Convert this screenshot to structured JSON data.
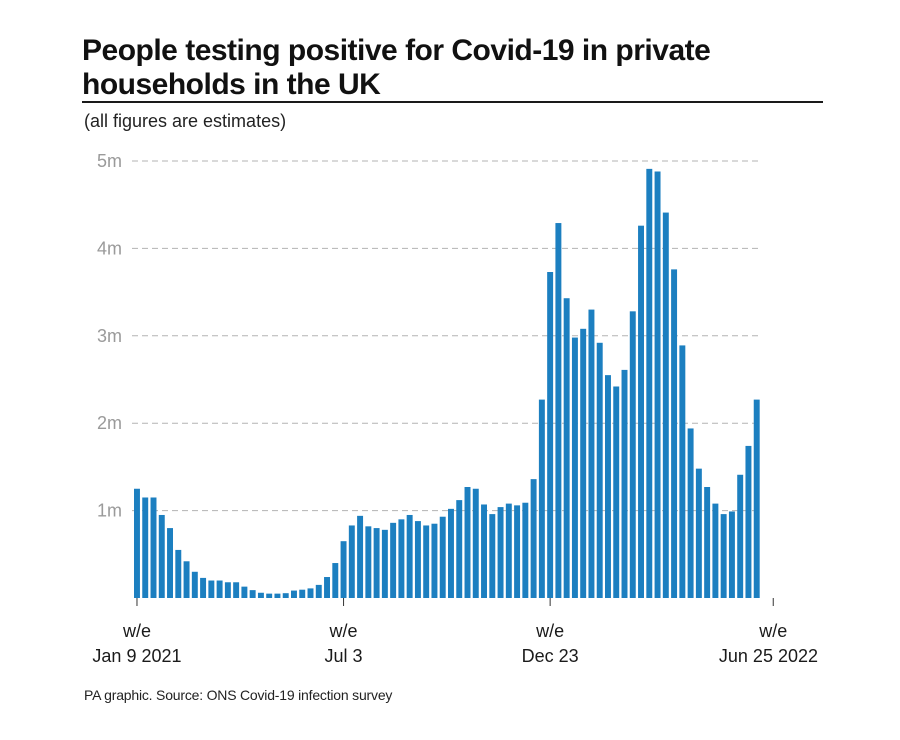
{
  "header": {
    "title": "People testing positive for Covid-19 in private households in the UK",
    "subtitle": "(all figures are estimates)"
  },
  "footer": {
    "source": "PA graphic. Source: ONS Covid-19 infection survey"
  },
  "colors": {
    "bar": "#1c7fc0",
    "gridline": "#b3b3b3",
    "tick_label": "#9a9a9a",
    "axis_label": "#1a1a1a"
  },
  "chart_data": {
    "type": "bar",
    "title": "People testing positive for Covid-19 in private households in the UK",
    "subtitle": "(all figures are estimates)",
    "ylabel": "",
    "xlabel": "",
    "ylim": [
      0,
      5000000
    ],
    "grid": true,
    "y_ticks": [
      {
        "value": 1000000,
        "label": "1m"
      },
      {
        "value": 2000000,
        "label": "2m"
      },
      {
        "value": 3000000,
        "label": "3m"
      },
      {
        "value": 4000000,
        "label": "4m"
      },
      {
        "value": 5000000,
        "label": "5m"
      }
    ],
    "x_ticks": [
      {
        "index": 0,
        "line1": "w/e",
        "line2": "Jan 9 2021"
      },
      {
        "index": 25,
        "line1": "w/e",
        "line2": "Jul 3"
      },
      {
        "index": 50,
        "line1": "w/e",
        "line2": "Dec 23"
      },
      {
        "index": 77,
        "line1": "w/e",
        "line2": "Jun 25  2022"
      }
    ],
    "values": [
      1250000,
      1150000,
      1150000,
      950000,
      800000,
      550000,
      420000,
      300000,
      230000,
      200000,
      200000,
      180000,
      180000,
      130000,
      90000,
      60000,
      50000,
      50000,
      55000,
      85000,
      95000,
      110000,
      150000,
      240000,
      400000,
      650000,
      830000,
      940000,
      820000,
      800000,
      780000,
      860000,
      900000,
      950000,
      880000,
      830000,
      850000,
      930000,
      1020000,
      1120000,
      1270000,
      1250000,
      1070000,
      960000,
      1040000,
      1080000,
      1060000,
      1090000,
      1360000,
      2270000,
      3730000,
      4290000,
      3430000,
      2980000,
      3080000,
      3300000,
      2920000,
      2550000,
      2420000,
      2610000,
      3280000,
      4260000,
      4910000,
      4880000,
      4410000,
      3760000,
      2890000,
      1940000,
      1480000,
      1270000,
      1080000,
      960000,
      990000,
      1410000,
      1740000,
      2270000
    ]
  }
}
